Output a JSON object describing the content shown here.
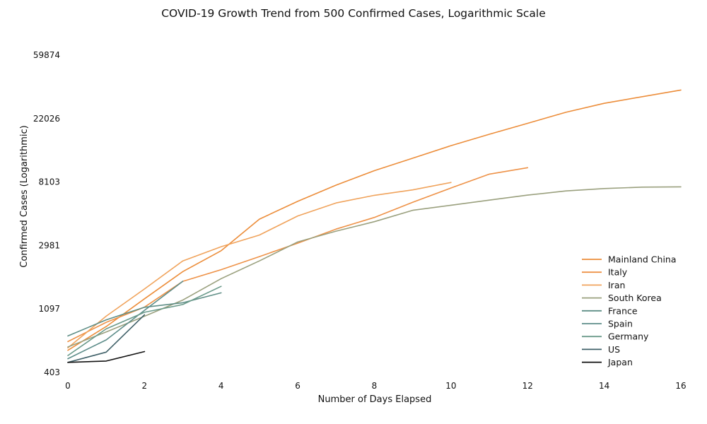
{
  "chart_data": {
    "type": "line",
    "title": "COVID-19 Growth Trend from 500 Confirmed Cases, Logarithmic Scale",
    "xlabel": "Number of Days Elapsed",
    "ylabel": "Confirmed Cases (Logarithmic)",
    "x_ticks": [
      0,
      2,
      4,
      6,
      8,
      10,
      12,
      14,
      16
    ],
    "y_ticks": [
      403,
      1097,
      2981,
      8103,
      22026,
      59874
    ],
    "y_tick_labels": [
      "403",
      "1097",
      "2981",
      "8103",
      "22026",
      "59874"
    ],
    "y_scale": "log",
    "xlim": [
      0,
      16
    ],
    "ylim": [
      403,
      59874
    ],
    "grid": false,
    "legend_position": "bottom-right",
    "series": [
      {
        "name": "Mainland China",
        "color": "#ec8d3a",
        "x": [
          0,
          1,
          2,
          3,
          4,
          5,
          6,
          7,
          8,
          9,
          10,
          11,
          12,
          13,
          14,
          16
        ],
        "y": [
          571,
          830,
          1287,
          1975,
          2744,
          4515,
          5974,
          7711,
          9692,
          11791,
          14380,
          17205,
          20438,
          24324,
          28018,
          34546
        ]
      },
      {
        "name": "Italy",
        "color": "#ee9248",
        "x": [
          0,
          1,
          2,
          3,
          4,
          5,
          6,
          7,
          8,
          9,
          10,
          11,
          12
        ],
        "y": [
          655,
          888,
          1128,
          1694,
          2036,
          2502,
          3089,
          3858,
          4636,
          5883,
          7375,
          9172,
          10149
        ]
      },
      {
        "name": "Iran",
        "color": "#f0a35c",
        "x": [
          0,
          1,
          2,
          3,
          4,
          5,
          6,
          7,
          8,
          9,
          10
        ],
        "y": [
          593,
          978,
          1501,
          2336,
          2922,
          3513,
          4747,
          5823,
          6566,
          7161,
          8042
        ]
      },
      {
        "name": "South Korea",
        "color": "#9aa07e",
        "x": [
          0,
          1,
          2,
          3,
          4,
          5,
          6,
          7,
          8,
          9,
          10,
          11,
          12,
          13,
          14,
          15,
          16
        ],
        "y": [
          602,
          763,
          977,
          1261,
          1766,
          2337,
          3150,
          3736,
          4335,
          5186,
          5621,
          6088,
          6593,
          7041,
          7313,
          7478,
          7513
        ]
      },
      {
        "name": "France",
        "color": "#5f8e86",
        "x": [
          0,
          1,
          2,
          3,
          4
        ],
        "y": [
          716,
          923,
          1126,
          1209,
          1412
        ]
      },
      {
        "name": "Spain",
        "color": "#5d8d8a",
        "x": [
          0,
          1,
          2,
          3
        ],
        "y": [
          500,
          673,
          1073,
          1695
        ]
      },
      {
        "name": "Germany",
        "color": "#6a9a8a",
        "x": [
          0,
          1,
          2,
          3,
          4
        ],
        "y": [
          526,
          800,
          1040,
          1176,
          1565
        ]
      },
      {
        "name": "US",
        "color": "#3f6068",
        "x": [
          0,
          1,
          2
        ],
        "y": [
          472,
          555,
          1000
        ]
      },
      {
        "name": "Japan",
        "color": "#111111",
        "x": [
          0,
          1,
          2
        ],
        "y": [
          472,
          482,
          560
        ]
      }
    ]
  }
}
